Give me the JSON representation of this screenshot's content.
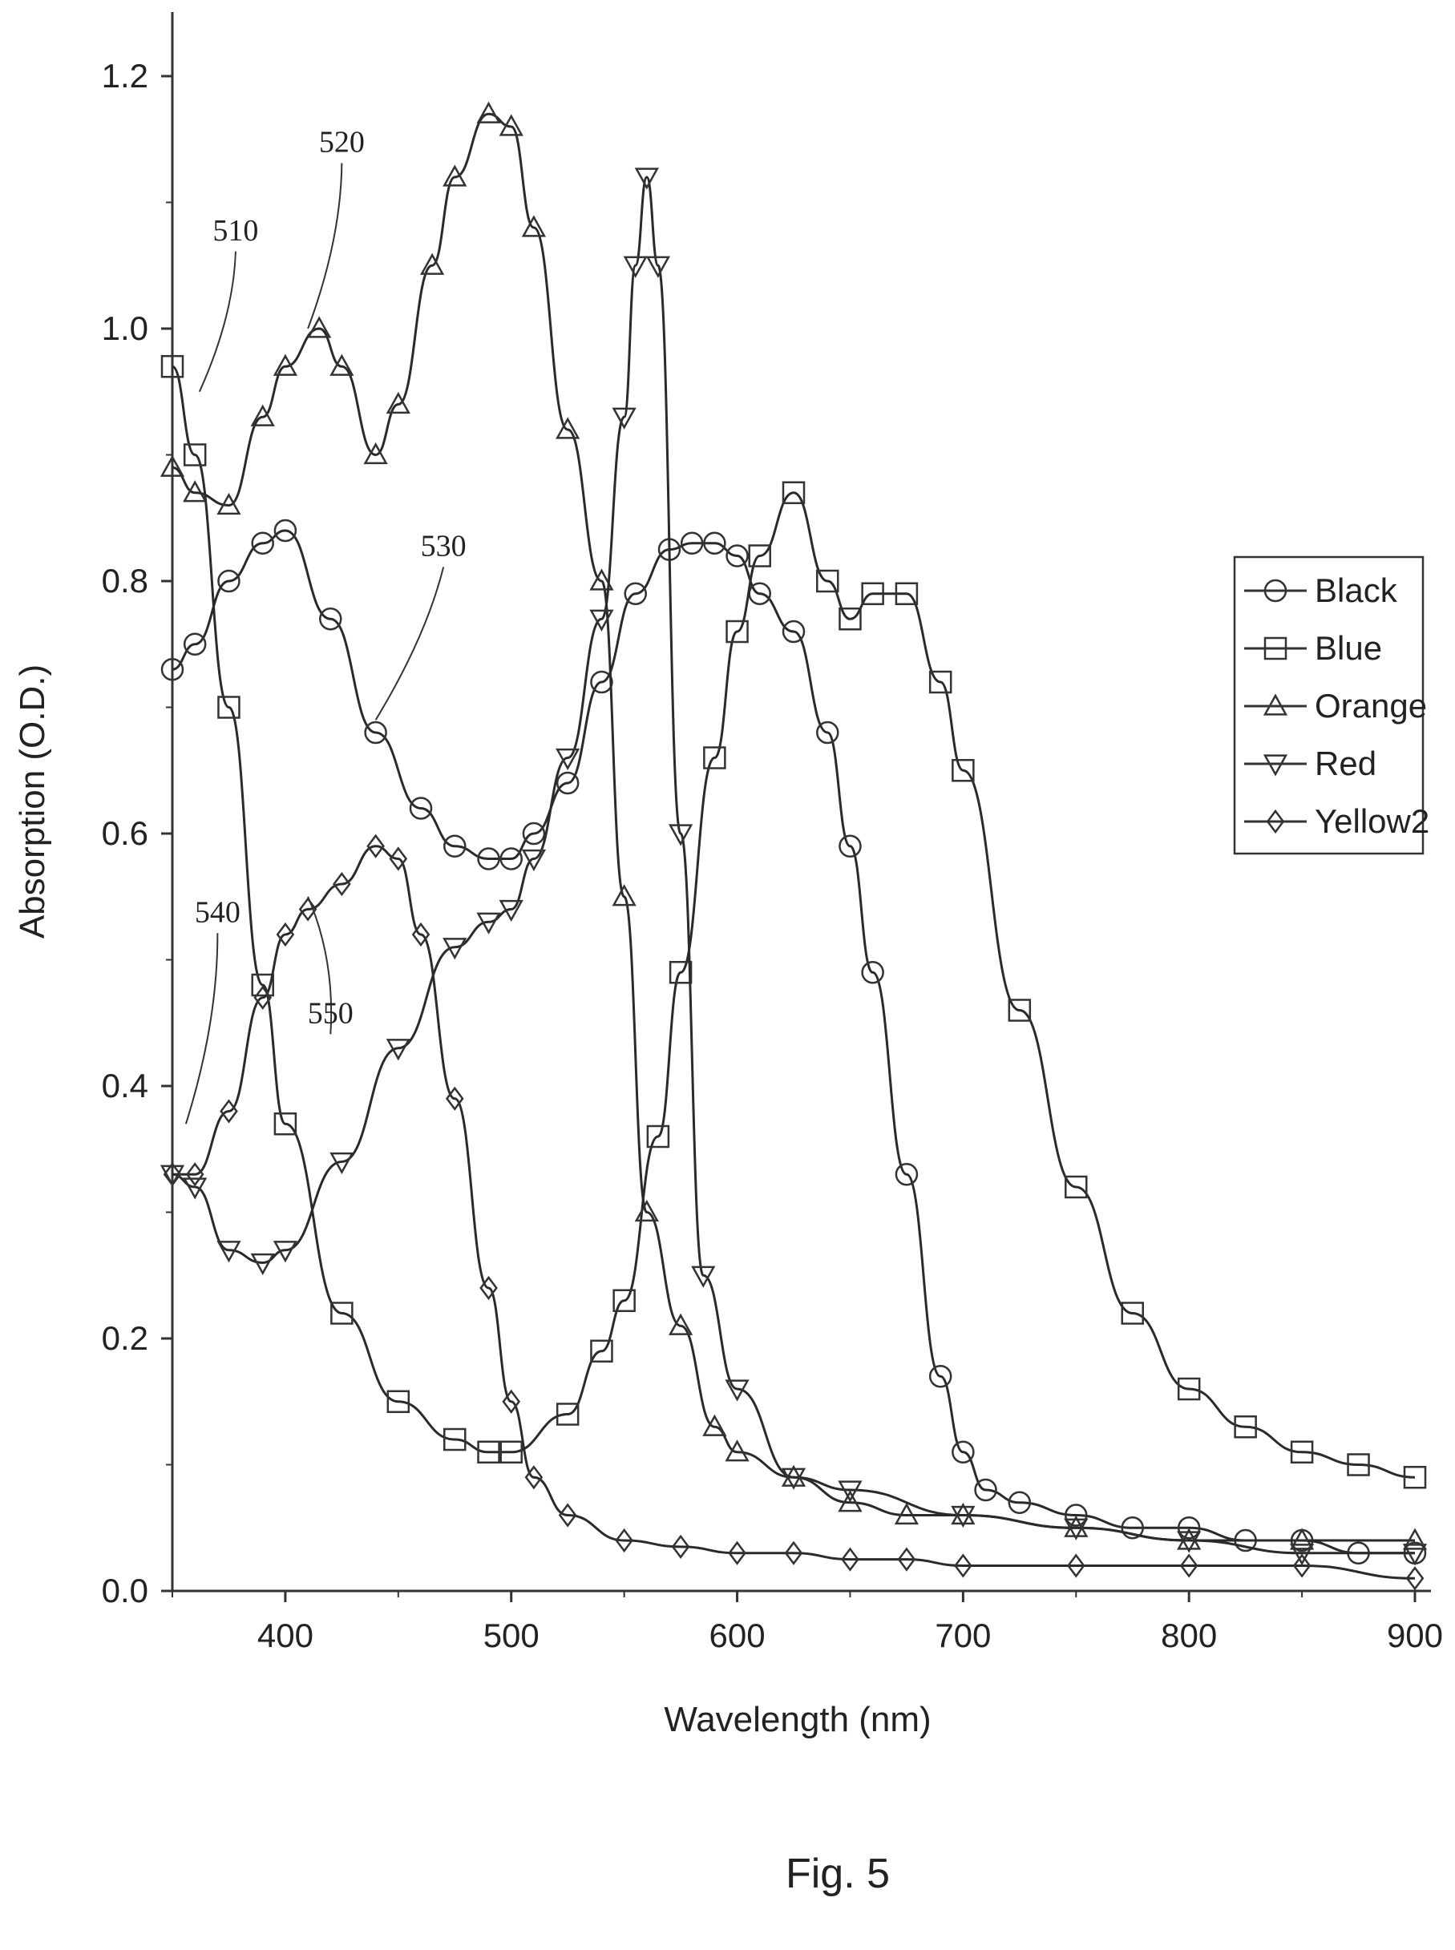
{
  "chart_data": {
    "type": "line",
    "xlabel": "Wavelength (nm)",
    "ylabel": "Absorption (O.D.)",
    "xlim": [
      350,
      900
    ],
    "ylim": [
      0.0,
      1.2
    ],
    "x_ticks": [
      400,
      500,
      600,
      700,
      800,
      900
    ],
    "y_ticks": [
      "0.0",
      "0.2",
      "0.4",
      "0.6",
      "0.8",
      "1.0",
      "1.2"
    ],
    "grid": false,
    "legend_position": "right",
    "caption": "Fig. 5",
    "annotations": [
      {
        "text": "510",
        "x": 378,
        "y": 1.07,
        "ax": 362,
        "ay": 0.95
      },
      {
        "text": "520",
        "x": 425,
        "y": 1.14,
        "ax": 410,
        "ay": 1.0
      },
      {
        "text": "530",
        "x": 470,
        "y": 0.82,
        "ax": 440,
        "ay": 0.69
      },
      {
        "text": "540",
        "x": 370,
        "y": 0.53,
        "ax": 356,
        "ay": 0.37
      },
      {
        "text": "550",
        "x": 420,
        "y": 0.45,
        "ax": 410,
        "ay": 0.55
      }
    ],
    "series": [
      {
        "name": "Black",
        "marker": "circle",
        "x": [
          350,
          360,
          375,
          390,
          400,
          420,
          440,
          460,
          475,
          490,
          500,
          510,
          525,
          540,
          555,
          570,
          580,
          590,
          600,
          610,
          625,
          640,
          650,
          660,
          675,
          690,
          700,
          710,
          725,
          750,
          775,
          800,
          825,
          850,
          875,
          900
        ],
        "y": [
          0.73,
          0.75,
          0.8,
          0.83,
          0.84,
          0.77,
          0.68,
          0.62,
          0.59,
          0.58,
          0.58,
          0.6,
          0.64,
          0.72,
          0.79,
          0.825,
          0.83,
          0.83,
          0.82,
          0.79,
          0.76,
          0.68,
          0.59,
          0.49,
          0.33,
          0.17,
          0.11,
          0.08,
          0.07,
          0.06,
          0.05,
          0.05,
          0.04,
          0.04,
          0.03,
          0.03
        ]
      },
      {
        "name": "Blue",
        "marker": "square",
        "x": [
          350,
          360,
          375,
          390,
          400,
          425,
          450,
          475,
          490,
          500,
          525,
          540,
          550,
          565,
          575,
          590,
          600,
          610,
          625,
          640,
          650,
          660,
          675,
          690,
          700,
          725,
          750,
          775,
          800,
          825,
          850,
          875,
          900
        ],
        "y": [
          0.97,
          0.9,
          0.7,
          0.48,
          0.37,
          0.22,
          0.15,
          0.12,
          0.11,
          0.11,
          0.14,
          0.19,
          0.23,
          0.36,
          0.49,
          0.66,
          0.76,
          0.82,
          0.87,
          0.8,
          0.77,
          0.79,
          0.79,
          0.72,
          0.65,
          0.46,
          0.32,
          0.22,
          0.16,
          0.13,
          0.11,
          0.1,
          0.09
        ]
      },
      {
        "name": "Orange",
        "marker": "triangle-up",
        "x": [
          350,
          360,
          375,
          390,
          400,
          415,
          425,
          440,
          450,
          465,
          475,
          490,
          500,
          510,
          525,
          540,
          550,
          560,
          575,
          590,
          600,
          625,
          650,
          675,
          700,
          750,
          800,
          850,
          900
        ],
        "y": [
          0.89,
          0.87,
          0.86,
          0.93,
          0.97,
          1.0,
          0.97,
          0.9,
          0.94,
          1.05,
          1.12,
          1.17,
          1.16,
          1.08,
          0.92,
          0.8,
          0.55,
          0.3,
          0.21,
          0.13,
          0.11,
          0.09,
          0.07,
          0.06,
          0.06,
          0.05,
          0.04,
          0.04,
          0.04
        ]
      },
      {
        "name": "Red",
        "marker": "triangle-down",
        "x": [
          350,
          360,
          375,
          390,
          400,
          425,
          450,
          475,
          490,
          500,
          510,
          525,
          540,
          550,
          555,
          560,
          565,
          575,
          585,
          600,
          625,
          650,
          700,
          750,
          800,
          850,
          900
        ],
        "y": [
          0.33,
          0.32,
          0.27,
          0.26,
          0.27,
          0.34,
          0.43,
          0.51,
          0.53,
          0.54,
          0.58,
          0.66,
          0.77,
          0.93,
          1.05,
          1.12,
          1.05,
          0.6,
          0.25,
          0.16,
          0.09,
          0.08,
          0.06,
          0.05,
          0.04,
          0.03,
          0.03
        ]
      },
      {
        "name": "Yellow2",
        "marker": "diamond",
        "x": [
          350,
          360,
          375,
          390,
          400,
          410,
          425,
          440,
          450,
          460,
          475,
          490,
          500,
          510,
          525,
          550,
          575,
          600,
          625,
          650,
          675,
          700,
          750,
          800,
          850,
          900
        ],
        "y": [
          0.33,
          0.33,
          0.38,
          0.47,
          0.52,
          0.54,
          0.56,
          0.59,
          0.58,
          0.52,
          0.39,
          0.24,
          0.15,
          0.09,
          0.06,
          0.04,
          0.035,
          0.03,
          0.03,
          0.025,
          0.025,
          0.02,
          0.02,
          0.02,
          0.02,
          0.01
        ]
      }
    ]
  }
}
